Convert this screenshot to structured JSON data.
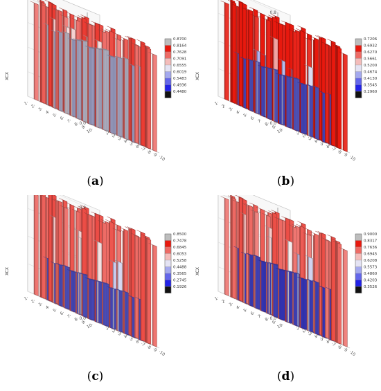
{
  "panels": [
    {
      "id": "a",
      "caption": "a"
    },
    {
      "id": "b",
      "caption": "b"
    },
    {
      "id": "c",
      "caption": "c"
    },
    {
      "id": "d",
      "caption": "d"
    }
  ],
  "colors": {
    "high": "#e8190e",
    "mid_high": "#f2a2a0",
    "white": "#f7f4f4",
    "mid_low": "#aab0ee",
    "low": "#2222e6",
    "legend_top": "#bdbdbd",
    "legend_bottom": "#111111"
  },
  "chart_data": [
    {
      "type": "bar3d",
      "panel": "a",
      "ylabel": "XCX",
      "zlim": [
        0,
        0.9
      ],
      "z_ticks": [
        "0.0",
        "0.2",
        "0.4",
        "0.6",
        "0.8"
      ],
      "legend": [
        "0.8700",
        "0.8164",
        "0.7628",
        "0.7091",
        "0.6555",
        "0.6019",
        "0.5483",
        "0.4936",
        "0.4480"
      ],
      "grid_rows": 10,
      "grid_cols": 10,
      "edge_value": 0.84,
      "interior_value": 0.65,
      "spikes": [
        [
          1,
          2,
          0.72
        ],
        [
          1,
          5,
          0.71
        ],
        [
          2,
          3,
          0.7
        ],
        [
          3,
          7,
          0.7
        ],
        [
          4,
          4,
          0.69
        ]
      ]
    },
    {
      "type": "bar3d",
      "panel": "b",
      "ylabel": "XCX",
      "zlim": [
        0,
        0.8
      ],
      "z_ticks": [
        "0.0",
        "0.2",
        "0.4",
        "0.6",
        "0.8"
      ],
      "legend": [
        "0.7206",
        "0.6932",
        "0.6270",
        "0.5661",
        "0.5200",
        "0.4674",
        "0.4130",
        "0.3545",
        "0.2960"
      ],
      "grid_rows": 10,
      "grid_cols": 10,
      "edge_value": 0.75,
      "interior_value": 0.37,
      "spikes": [
        [
          1,
          7,
          0.6
        ],
        [
          2,
          3,
          0.45
        ],
        [
          3,
          6,
          0.46
        ],
        [
          4,
          2,
          0.44
        ],
        [
          5,
          8,
          0.5
        ],
        [
          6,
          4,
          0.42
        ]
      ]
    },
    {
      "type": "bar3d",
      "panel": "c",
      "ylabel": "XCX",
      "zlim": [
        0,
        0.8
      ],
      "z_ticks": [
        "0.0",
        "0.2",
        "0.4",
        "0.6",
        "0.8"
      ],
      "legend": [
        "0.8500",
        "0.7478",
        "0.6845",
        "0.6053",
        "0.5258",
        "0.4488",
        "0.3565",
        "0.2745",
        "0.1926"
      ],
      "grid_rows": 10,
      "grid_cols": 10,
      "edge_value": 0.78,
      "interior_value": 0.3,
      "spikes": [
        [
          1,
          2,
          0.62
        ],
        [
          2,
          5,
          0.6
        ],
        [
          3,
          7,
          0.58
        ],
        [
          4,
          3,
          0.55
        ],
        [
          5,
          8,
          0.5
        ],
        [
          6,
          6,
          0.48
        ]
      ]
    },
    {
      "type": "bar3d",
      "panel": "d",
      "ylabel": "XCX",
      "zlim": [
        0,
        0.9
      ],
      "z_ticks": [
        "0.0",
        "0.2",
        "0.4",
        "0.6",
        "0.8"
      ],
      "legend": [
        "0.9000",
        "0.8317",
        "0.7636",
        "0.6945",
        "0.6208",
        "0.5573",
        "0.4860",
        "0.4203",
        "0.3526"
      ],
      "grid_rows": 10,
      "grid_cols": 10,
      "edge_value": 0.84,
      "interior_value": 0.42,
      "spikes": [
        [
          1,
          2,
          0.72
        ],
        [
          2,
          5,
          0.7
        ],
        [
          3,
          7,
          0.66
        ],
        [
          4,
          3,
          0.62
        ],
        [
          5,
          8,
          0.6
        ],
        [
          6,
          5,
          0.58
        ]
      ]
    }
  ]
}
